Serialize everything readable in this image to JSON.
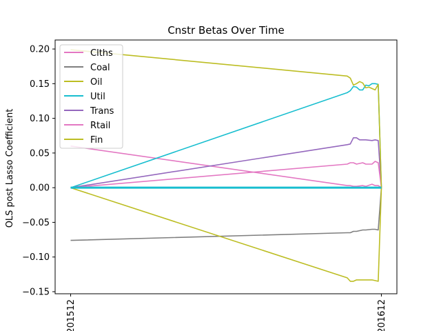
{
  "chart_data": {
    "type": "line",
    "title": "Cnstr Betas Over Time",
    "ylabel": "OLS post Lasso Coefficient",
    "xlabel": "",
    "x_tick_labels": [
      "201512",
      "201612"
    ],
    "x_tick_positions": [
      0,
      1
    ],
    "xlim": [
      -0.05,
      1.05
    ],
    "ylim": [
      -0.153,
      0.213
    ],
    "y_ticks": [
      -0.15,
      -0.1,
      -0.05,
      0.0,
      0.05,
      0.1,
      0.15,
      0.2
    ],
    "y_tick_labels": [
      "−0.15",
      "−0.10",
      "−0.05",
      "0.00",
      "0.05",
      "0.10",
      "0.15",
      "0.20"
    ],
    "legend_position": "top-left",
    "series": [
      {
        "name": "Clths",
        "color": "#e377c2",
        "x": [
          0,
          0.89,
          0.9,
          0.91,
          0.92,
          0.94,
          0.95,
          0.97,
          0.98,
          0.99,
          1.0
        ],
        "y": [
          0.06,
          0.003,
          0.003,
          0.002,
          0.002,
          0.003,
          0.002,
          0.005,
          0.003,
          0.003,
          0.0
        ]
      },
      {
        "name": "Coal",
        "color": "#7f7f7f",
        "x": [
          0,
          0.89,
          0.9,
          0.91,
          0.92,
          0.94,
          0.95,
          0.97,
          0.98,
          0.99,
          1.0
        ],
        "y": [
          -0.076,
          -0.065,
          -0.065,
          -0.063,
          -0.063,
          -0.061,
          -0.061,
          -0.06,
          -0.06,
          -0.061,
          0.0
        ]
      },
      {
        "name": "Oil",
        "color": "#bcbd22",
        "x": [
          0,
          0.89,
          0.9,
          0.91,
          0.92,
          0.94,
          0.95,
          0.97,
          0.98,
          0.99,
          1.0
        ],
        "y": [
          0.0,
          -0.13,
          -0.135,
          -0.135,
          -0.133,
          -0.133,
          -0.133,
          -0.133,
          -0.134,
          -0.135,
          0.0
        ]
      },
      {
        "name": "Util",
        "color": "#17becf",
        "x": [
          0,
          0.89,
          0.9,
          0.91,
          0.92,
          0.93,
          0.94,
          0.95,
          0.96,
          0.97,
          0.98,
          0.99,
          1.0
        ],
        "y": [
          0.0,
          0.137,
          0.14,
          0.146,
          0.145,
          0.141,
          0.141,
          0.148,
          0.147,
          0.15,
          0.15,
          0.149,
          0.0
        ]
      },
      {
        "name": "Trans",
        "color": "#9467bd",
        "x": [
          0,
          0.89,
          0.9,
          0.91,
          0.92,
          0.93,
          0.95,
          0.97,
          0.98,
          0.99,
          1.0
        ],
        "y": [
          0.0,
          0.062,
          0.063,
          0.072,
          0.072,
          0.069,
          0.069,
          0.068,
          0.069,
          0.068,
          0.0
        ]
      },
      {
        "name": "Rtail",
        "color": "#e377c2",
        "x": [
          0,
          0.89,
          0.9,
          0.91,
          0.92,
          0.94,
          0.95,
          0.97,
          0.98,
          0.99,
          1.0
        ],
        "y": [
          0.0,
          0.034,
          0.036,
          0.036,
          0.034,
          0.036,
          0.034,
          0.034,
          0.038,
          0.036,
          0.0
        ]
      },
      {
        "name": "Fin",
        "color": "#bcbd22",
        "x": [
          0,
          0.89,
          0.9,
          0.91,
          0.92,
          0.93,
          0.94,
          0.95,
          0.96,
          0.97,
          0.98,
          0.99,
          1.0
        ],
        "y": [
          0.199,
          0.161,
          0.158,
          0.148,
          0.15,
          0.153,
          0.151,
          0.144,
          0.145,
          0.143,
          0.141,
          0.149,
          0.0
        ]
      }
    ],
    "flat_zero_lines": {
      "color": "#17becf",
      "y": 0.0
    }
  }
}
